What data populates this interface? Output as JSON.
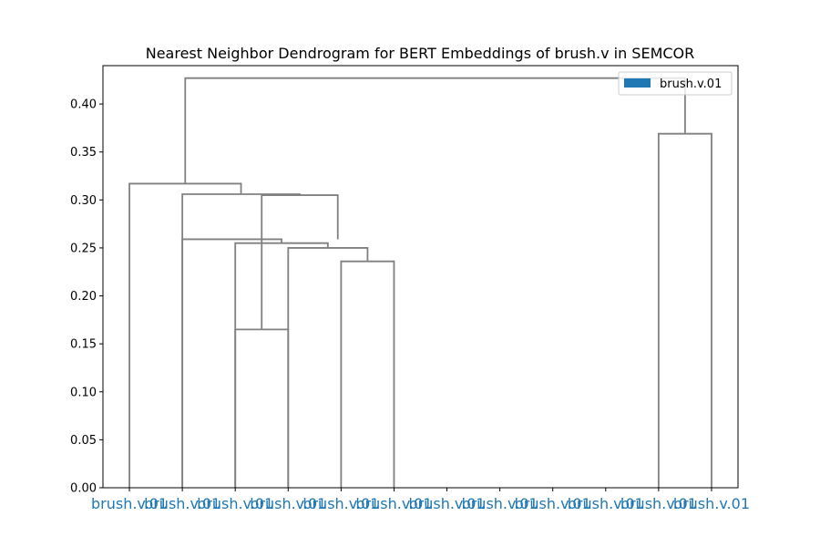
{
  "chart_data": {
    "type": "dendrogram",
    "title": "Nearest Neighbor Dendrogram for BERT Embeddings of brush.v in SEMCOR",
    "xlabel": "",
    "ylabel": "",
    "ylim": [
      0,
      0.44
    ],
    "yticks": [
      0.0,
      0.05,
      0.1,
      0.15,
      0.2,
      0.25,
      0.3,
      0.35,
      0.4
    ],
    "ytick_labels": [
      "0.00",
      "0.05",
      "0.10",
      "0.15",
      "0.20",
      "0.25",
      "0.30",
      "0.35",
      "0.40"
    ],
    "leaves": [
      "brush.v.01",
      "brush.v.01",
      "brush.v.01",
      "brush.v.01",
      "brush.v.01",
      "brush.v.01",
      "brush.v.01",
      "brush.v.01",
      "brush.v.01",
      "brush.v.01",
      "brush.v.01",
      "brush.v.01"
    ],
    "links": [
      {
        "left": 4.5,
        "right": 5.5,
        "height": 0.236,
        "left_base": 0,
        "right_base": 0
      },
      {
        "left": 3.5,
        "right": 5.0,
        "height": 0.25,
        "left_base": 0,
        "right_base": 0.236
      },
      {
        "left": 2.5,
        "right": 4.25,
        "height": 0.255,
        "left_base": 0,
        "right_base": 0.25
      },
      {
        "left": 1.5,
        "right": 3.375,
        "height": 0.259,
        "left_base": 0,
        "right_base": 0.255
      },
      {
        "left": 2.5,
        "right": 3.5,
        "height": 0.165,
        "left_base": 0,
        "right_base": 0
      },
      {
        "left": 3.0,
        "right": 4.4375,
        "height": 0.305,
        "left_base": 0.165,
        "right_base": 0.259
      },
      {
        "left": 1.5,
        "right": 3.71875,
        "height": 0.306,
        "left_base": 0,
        "right_base": 0.305
      },
      {
        "left": 0.5,
        "right": 2.609375,
        "height": 0.317,
        "left_base": 0,
        "right_base": 0.306
      },
      {
        "left": 10.5,
        "right": 11.5,
        "height": 0.369,
        "left_base": 0,
        "right_base": 0
      },
      {
        "left": 1.5546875,
        "right": 11.0,
        "height": 0.427,
        "left_base": 0.317,
        "right_base": 0.369
      }
    ],
    "link_color": "#808080",
    "leaf_label_color": "#1f77b4",
    "legend": [
      {
        "label": "brush.v.01",
        "color": "#1f77b4"
      }
    ],
    "legend_position": "top-right"
  }
}
